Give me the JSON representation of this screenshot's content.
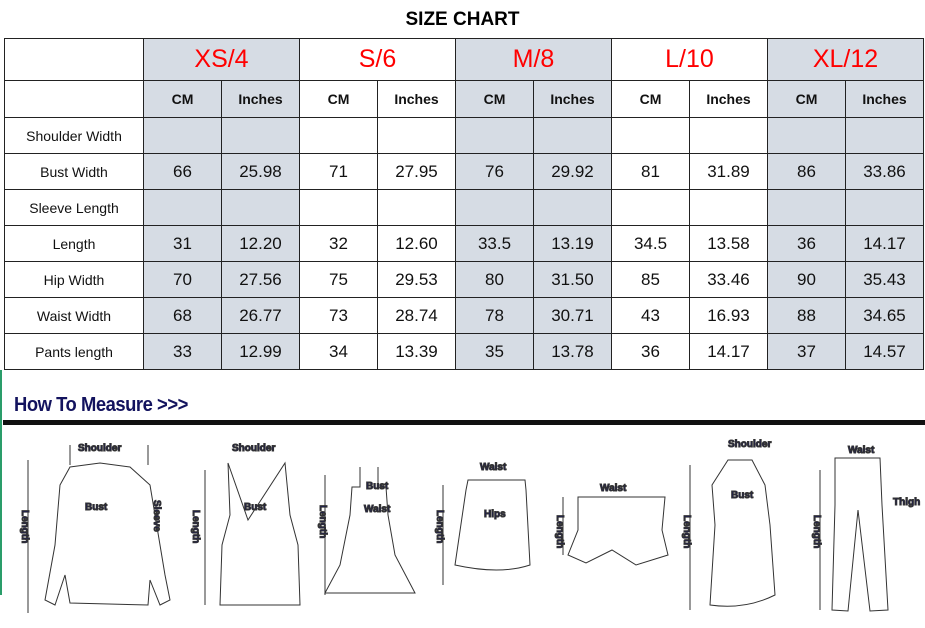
{
  "title": "SIZE CHART",
  "sizes": [
    "XS/4",
    "S/6",
    "M/8",
    "L/10",
    "XL/12"
  ],
  "units": [
    "CM",
    "Inches"
  ],
  "rows": [
    {
      "label": "Shoulder Width",
      "values": [
        "",
        "",
        "",
        "",
        "",
        "",
        "",
        "",
        "",
        ""
      ]
    },
    {
      "label": "Bust Width",
      "values": [
        "66",
        "25.98",
        "71",
        "27.95",
        "76",
        "29.92",
        "81",
        "31.89",
        "86",
        "33.86"
      ]
    },
    {
      "label": "Sleeve Length",
      "values": [
        "",
        "",
        "",
        "",
        "",
        "",
        "",
        "",
        "",
        ""
      ]
    },
    {
      "label": "Length",
      "values": [
        "31",
        "12.20",
        "32",
        "12.60",
        "33.5",
        "13.19",
        "34.5",
        "13.58",
        "36",
        "14.17"
      ]
    },
    {
      "label": "Hip Width",
      "values": [
        "70",
        "27.56",
        "75",
        "29.53",
        "80",
        "31.50",
        "85",
        "33.46",
        "90",
        "35.43"
      ]
    },
    {
      "label": "Waist Width",
      "values": [
        "68",
        "26.77",
        "73",
        "28.74",
        "78",
        "30.71",
        "43",
        "16.93",
        "88",
        "34.65"
      ]
    },
    {
      "label": "Pants length",
      "values": [
        "33",
        "12.99",
        "34",
        "13.39",
        "35",
        "13.78",
        "36",
        "14.17",
        "37",
        "14.57"
      ]
    }
  ],
  "colors": {
    "size_text": "#ff0000",
    "shade": "#d6dce4",
    "measure_text": "#13135e"
  },
  "how_to_measure": {
    "heading": "How To Measure >>>",
    "labels": {
      "shoulder": "Shoulder",
      "bust": "Bust",
      "sleeve": "Sleeve",
      "length": "Length",
      "waist": "Waist",
      "hips": "Hips",
      "thigh": "Thigh"
    }
  }
}
